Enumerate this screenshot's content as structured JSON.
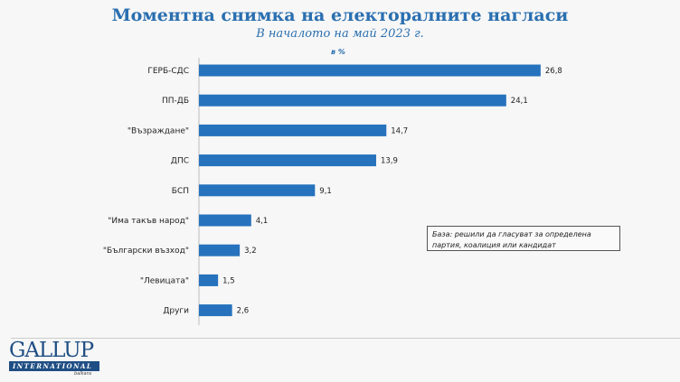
{
  "chart_data": {
    "type": "bar",
    "orientation": "horizontal",
    "title": "Моментна снимка на електоралните нагласи",
    "subtitle": "В началото на май 2023 г.",
    "unit_label": "в %",
    "categories": [
      "ГЕРБ-СДС",
      "ПП-ДБ",
      "\"Възраждане\"",
      "ДПС",
      "БСП",
      "\"Има такъв народ\"",
      "\"Български възход\"",
      "\"Левицата\"",
      "Други"
    ],
    "values": [
      26.8,
      24.1,
      14.7,
      13.9,
      9.1,
      4.1,
      3.2,
      1.5,
      2.6
    ],
    "value_labels": [
      "26,8",
      "24,1",
      "14,7",
      "13,9",
      "9,1",
      "4,1",
      "3,2",
      "1,5",
      "2,6"
    ],
    "bar_color": "#2672bd",
    "grid": false,
    "note": "База: решили да гласуват за определена партия, коалиция или кандидат"
  },
  "logo": {
    "name": "GALLUP",
    "sub": "INTERNATIONAL",
    "region": "balkans"
  }
}
